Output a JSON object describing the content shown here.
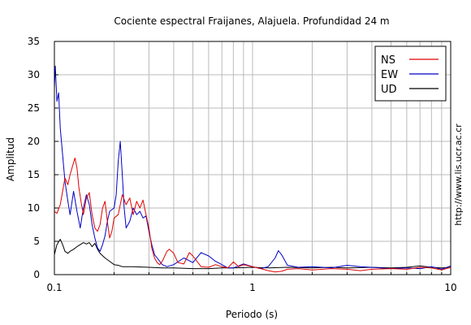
{
  "chart_data": {
    "type": "line",
    "title": "Cociente espectral Fraijanes, Alajuela. Profundidad 24 m",
    "xlabel": "Periodo (s)",
    "ylabel": "Amplitud",
    "xscale": "log",
    "xlim": [
      0.1,
      10
    ],
    "ylim": [
      0,
      35
    ],
    "xticks": [
      0.1,
      1,
      10
    ],
    "xtick_labels": [
      "0.1",
      "1",
      "10"
    ],
    "yticks": [
      0,
      5,
      10,
      15,
      20,
      25,
      30,
      35
    ],
    "ytick_labels": [
      "0",
      "5",
      "10",
      "15",
      "20",
      "25",
      "30",
      "35"
    ],
    "grid": true,
    "legend_position": "top-right",
    "side_note": "http://www.lis.ucr.ac.cr",
    "series": [
      {
        "name": "NS",
        "color": "#e00000",
        "points": [
          [
            0.1,
            9.5
          ],
          [
            0.103,
            9.2
          ],
          [
            0.107,
            10.5
          ],
          [
            0.11,
            12.5
          ],
          [
            0.113,
            14.5
          ],
          [
            0.117,
            13.5
          ],
          [
            0.12,
            15
          ],
          [
            0.124,
            16.5
          ],
          [
            0.127,
            17.5
          ],
          [
            0.13,
            16
          ],
          [
            0.133,
            13
          ],
          [
            0.137,
            10.5
          ],
          [
            0.14,
            9
          ],
          [
            0.145,
            11.5
          ],
          [
            0.15,
            12.3
          ],
          [
            0.155,
            9
          ],
          [
            0.16,
            7
          ],
          [
            0.165,
            6.5
          ],
          [
            0.17,
            7.5
          ],
          [
            0.175,
            10
          ],
          [
            0.18,
            11
          ],
          [
            0.185,
            8
          ],
          [
            0.19,
            5.5
          ],
          [
            0.195,
            6.5
          ],
          [
            0.2,
            8.5
          ],
          [
            0.21,
            9
          ],
          [
            0.22,
            12
          ],
          [
            0.23,
            10.5
          ],
          [
            0.24,
            11.5
          ],
          [
            0.25,
            9
          ],
          [
            0.26,
            11
          ],
          [
            0.27,
            10
          ],
          [
            0.28,
            11.2
          ],
          [
            0.29,
            9
          ],
          [
            0.3,
            7
          ],
          [
            0.31,
            4
          ],
          [
            0.32,
            2.5
          ],
          [
            0.33,
            1.8
          ],
          [
            0.34,
            1.5
          ],
          [
            0.35,
            2
          ],
          [
            0.37,
            3.5
          ],
          [
            0.38,
            3.8
          ],
          [
            0.4,
            3.2
          ],
          [
            0.42,
            1.8
          ],
          [
            0.45,
            1.6
          ],
          [
            0.48,
            3.3
          ],
          [
            0.5,
            2.8
          ],
          [
            0.55,
            1.2
          ],
          [
            0.6,
            1.1
          ],
          [
            0.65,
            1.5
          ],
          [
            0.7,
            1.2
          ],
          [
            0.75,
            1.0
          ],
          [
            0.8,
            1.9
          ],
          [
            0.85,
            1.2
          ],
          [
            0.9,
            1.5
          ],
          [
            1.0,
            1.2
          ],
          [
            1.1,
            0.9
          ],
          [
            1.2,
            0.6
          ],
          [
            1.3,
            0.4
          ],
          [
            1.4,
            0.5
          ],
          [
            1.5,
            0.8
          ],
          [
            1.7,
            0.9
          ],
          [
            2.0,
            0.7
          ],
          [
            2.5,
            0.9
          ],
          [
            3.0,
            0.8
          ],
          [
            3.5,
            0.6
          ],
          [
            4.0,
            0.8
          ],
          [
            5.0,
            0.9
          ],
          [
            6.0,
            0.8
          ],
          [
            7.0,
            1.1
          ],
          [
            8.0,
            1.0
          ],
          [
            9.0,
            0.7
          ],
          [
            10.0,
            1.1
          ]
        ]
      },
      {
        "name": "EW",
        "color": "#0000c8",
        "points": [
          [
            0.1,
            28
          ],
          [
            0.101,
            31.3
          ],
          [
            0.103,
            26
          ],
          [
            0.105,
            27.3
          ],
          [
            0.107,
            22
          ],
          [
            0.11,
            18
          ],
          [
            0.113,
            14
          ],
          [
            0.117,
            11
          ],
          [
            0.12,
            9
          ],
          [
            0.125,
            12.5
          ],
          [
            0.13,
            9.5
          ],
          [
            0.135,
            7
          ],
          [
            0.14,
            10
          ],
          [
            0.145,
            12
          ],
          [
            0.15,
            10.5
          ],
          [
            0.155,
            7.5
          ],
          [
            0.16,
            5.5
          ],
          [
            0.165,
            4
          ],
          [
            0.17,
            3.5
          ],
          [
            0.175,
            4.5
          ],
          [
            0.18,
            5.8
          ],
          [
            0.185,
            8
          ],
          [
            0.19,
            9.5
          ],
          [
            0.2,
            10
          ],
          [
            0.205,
            12
          ],
          [
            0.21,
            17
          ],
          [
            0.215,
            20
          ],
          [
            0.22,
            15
          ],
          [
            0.225,
            10
          ],
          [
            0.23,
            7
          ],
          [
            0.24,
            8
          ],
          [
            0.25,
            10
          ],
          [
            0.26,
            9
          ],
          [
            0.27,
            9.5
          ],
          [
            0.28,
            8.5
          ],
          [
            0.29,
            8.8
          ],
          [
            0.3,
            6.5
          ],
          [
            0.31,
            4.5
          ],
          [
            0.32,
            3
          ],
          [
            0.33,
            2.5
          ],
          [
            0.35,
            1.5
          ],
          [
            0.37,
            1.2
          ],
          [
            0.4,
            1.5
          ],
          [
            0.45,
            2.5
          ],
          [
            0.5,
            1.8
          ],
          [
            0.55,
            3.3
          ],
          [
            0.6,
            2.8
          ],
          [
            0.65,
            2
          ],
          [
            0.7,
            1.5
          ],
          [
            0.75,
            1.0
          ],
          [
            0.8,
            1.0
          ],
          [
            0.85,
            1.3
          ],
          [
            0.9,
            1.6
          ],
          [
            1.0,
            1.2
          ],
          [
            1.1,
            0.9
          ],
          [
            1.2,
            1.2
          ],
          [
            1.3,
            2.5
          ],
          [
            1.35,
            3.6
          ],
          [
            1.4,
            3.0
          ],
          [
            1.5,
            1.4
          ],
          [
            1.7,
            1.1
          ],
          [
            2.0,
            1.2
          ],
          [
            2.5,
            1.0
          ],
          [
            3.0,
            1.4
          ],
          [
            3.5,
            1.2
          ],
          [
            4.0,
            1.1
          ],
          [
            5.0,
            0.9
          ],
          [
            6.0,
            1.0
          ],
          [
            7.0,
            0.9
          ],
          [
            8.0,
            1.2
          ],
          [
            9.0,
            0.8
          ],
          [
            10.0,
            1.3
          ]
        ]
      },
      {
        "name": "UD",
        "color": "#000000",
        "points": [
          [
            0.1,
            3
          ],
          [
            0.103,
            4.5
          ],
          [
            0.107,
            5.3
          ],
          [
            0.11,
            4.5
          ],
          [
            0.113,
            3.5
          ],
          [
            0.117,
            3.2
          ],
          [
            0.12,
            3.5
          ],
          [
            0.125,
            3.8
          ],
          [
            0.13,
            4.2
          ],
          [
            0.135,
            4.5
          ],
          [
            0.14,
            4.8
          ],
          [
            0.145,
            4.6
          ],
          [
            0.15,
            4.8
          ],
          [
            0.155,
            4.2
          ],
          [
            0.16,
            4.7
          ],
          [
            0.165,
            3.8
          ],
          [
            0.17,
            3.2
          ],
          [
            0.18,
            2.5
          ],
          [
            0.19,
            2
          ],
          [
            0.2,
            1.5
          ],
          [
            0.21,
            1.4
          ],
          [
            0.22,
            1.2
          ],
          [
            0.25,
            1.2
          ],
          [
            0.3,
            1.1
          ],
          [
            0.35,
            1.0
          ],
          [
            0.4,
            1.0
          ],
          [
            0.5,
            0.9
          ],
          [
            0.6,
            0.9
          ],
          [
            0.7,
            1.0
          ],
          [
            0.8,
            1.0
          ],
          [
            1.0,
            1.1
          ],
          [
            1.2,
            1.0
          ],
          [
            1.5,
            1.1
          ],
          [
            2.0,
            1.0
          ],
          [
            2.5,
            1.1
          ],
          [
            3.0,
            1.0
          ],
          [
            4.0,
            1.1
          ],
          [
            5.0,
            1.0
          ],
          [
            6.0,
            1.1
          ],
          [
            7.0,
            1.3
          ],
          [
            8.0,
            1.1
          ],
          [
            9.0,
            1.0
          ],
          [
            10.0,
            1.1
          ]
        ]
      }
    ]
  }
}
